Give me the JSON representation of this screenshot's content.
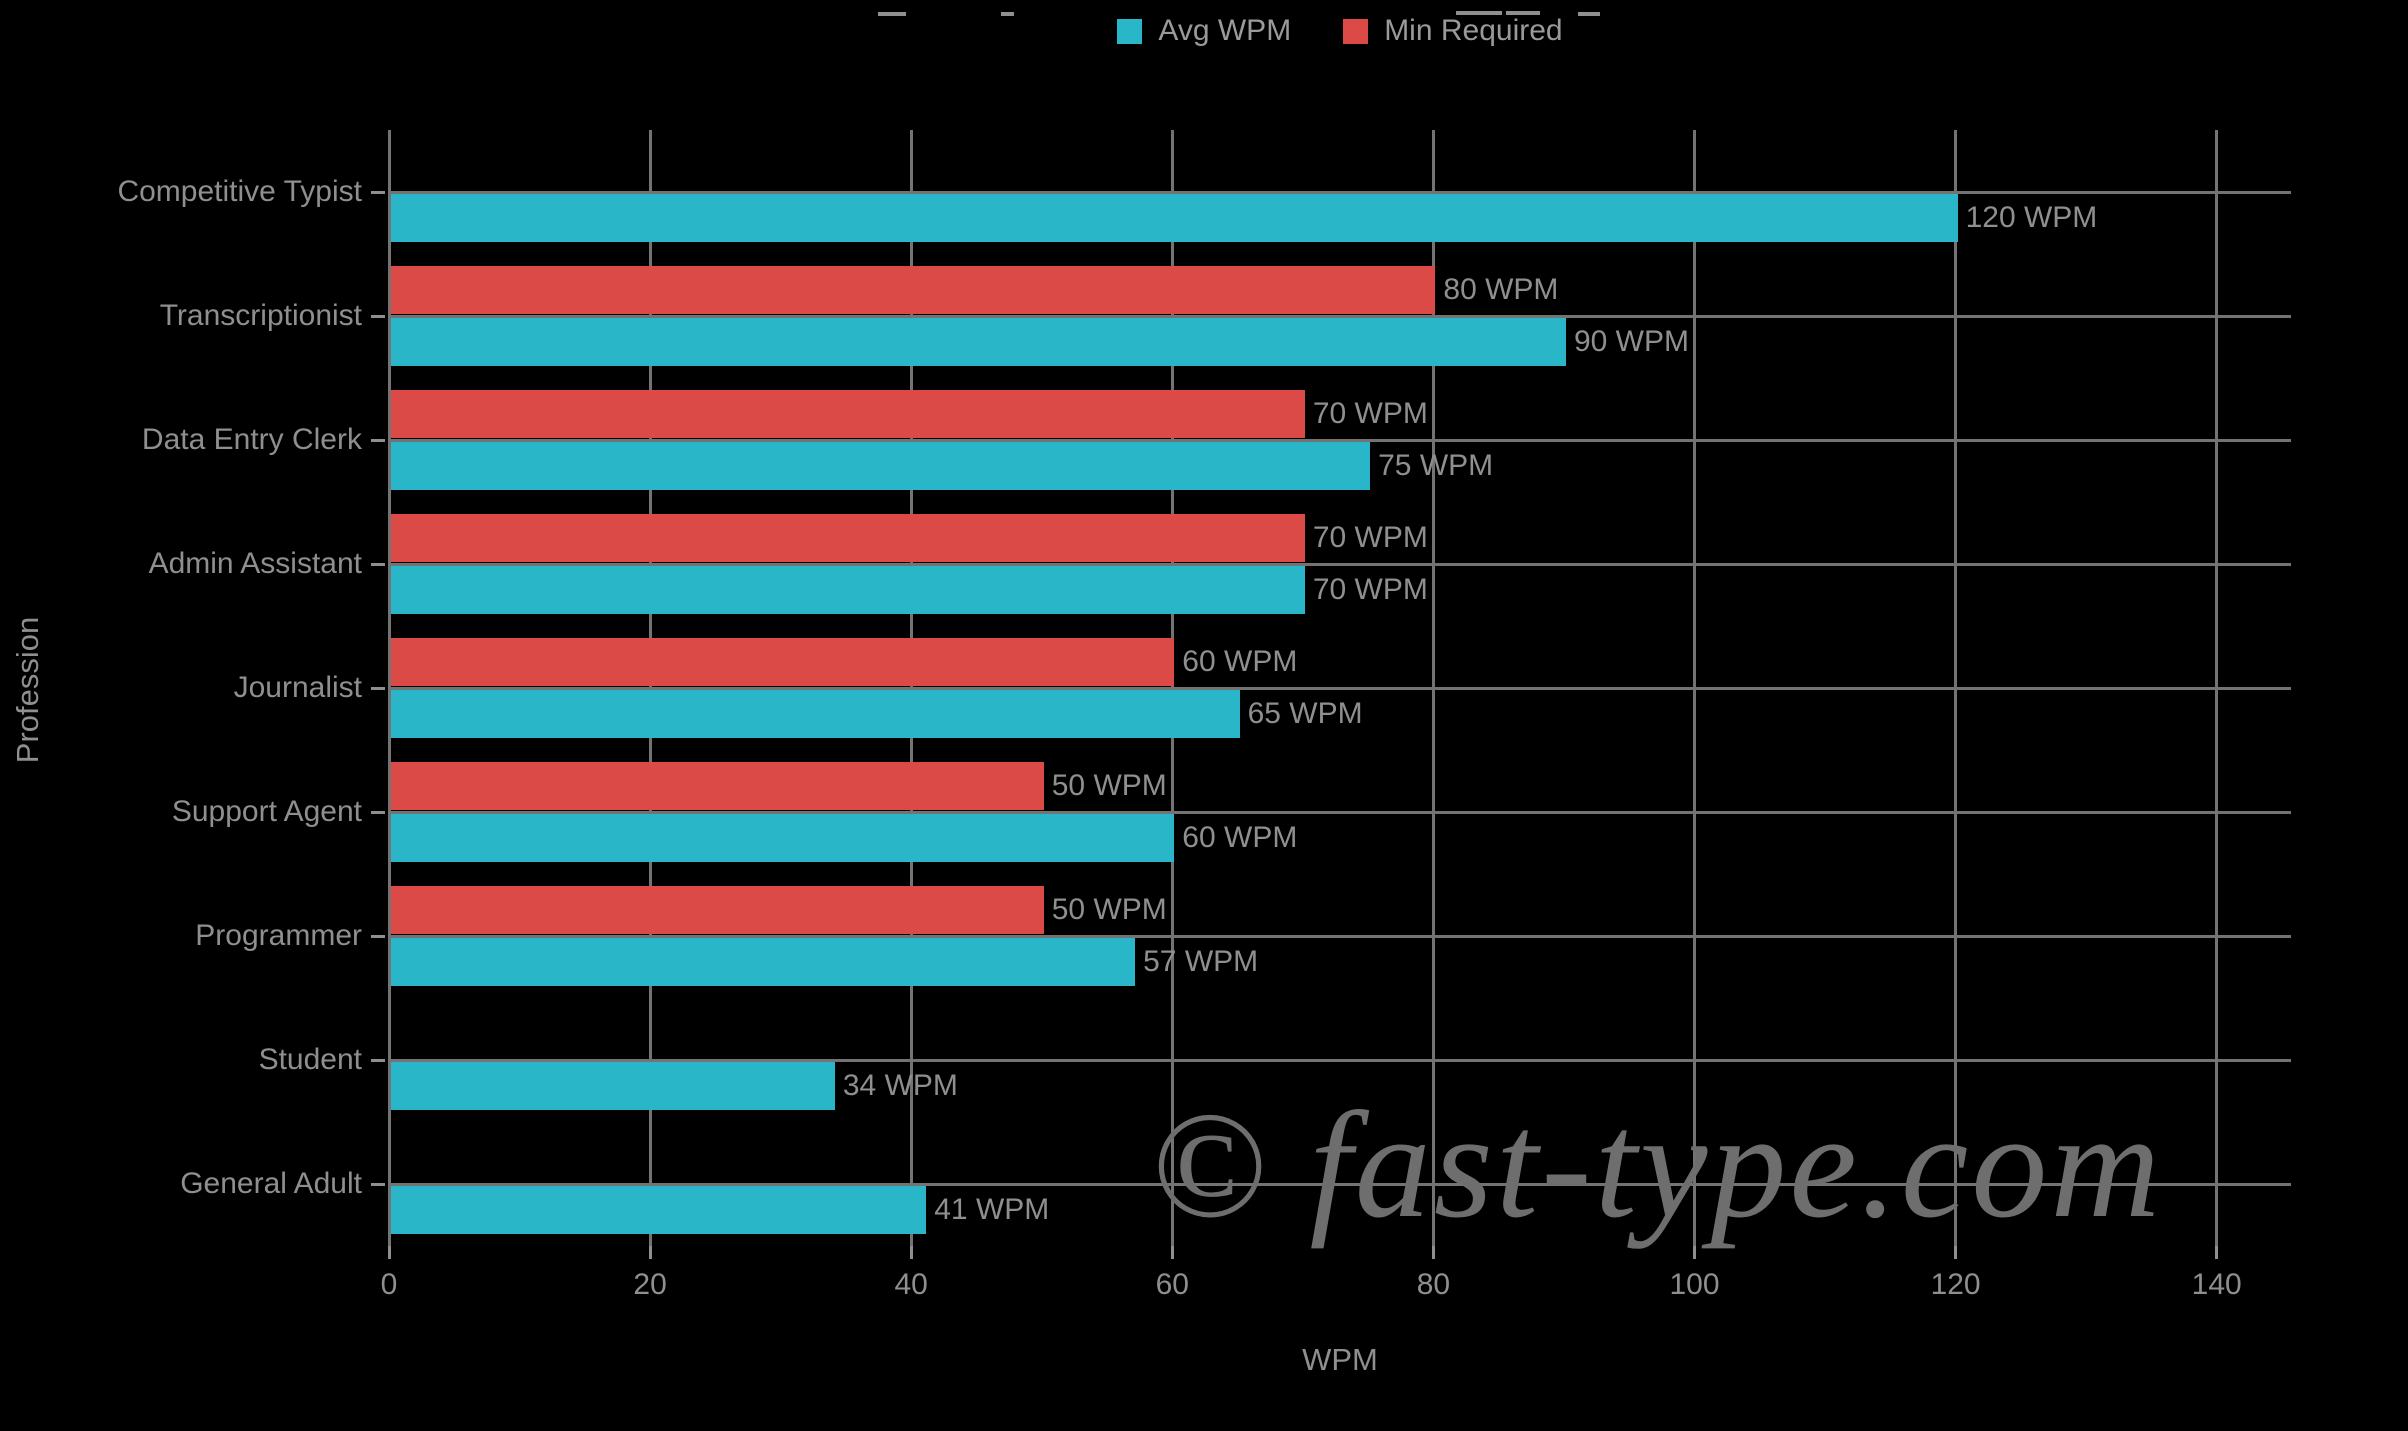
{
  "chart_data": {
    "type": "bar",
    "orientation": "horizontal",
    "categories": [
      "Competitive Typist",
      "Transcriptionist",
      "Data Entry Clerk",
      "Admin Assistant",
      "Journalist",
      "Support Agent",
      "Programmer",
      "Student",
      "General Adult"
    ],
    "series": [
      {
        "name": "Avg WPM",
        "color": "#29b6c9",
        "values": [
          120,
          90,
          75,
          70,
          65,
          60,
          57,
          34,
          41
        ]
      },
      {
        "name": "Min Required",
        "color": "#db4a47",
        "values": [
          null,
          80,
          70,
          70,
          60,
          50,
          50,
          null,
          null
        ]
      }
    ],
    "bar_label_suffix": " WPM",
    "xlabel": "WPM",
    "ylabel": "Profession",
    "xlim": [
      0,
      145.6
    ],
    "xticks": [
      0,
      20,
      40,
      60,
      80,
      100,
      120,
      140
    ],
    "grid": true,
    "legend_position": "top-center",
    "background_color": "#000000",
    "grid_color": "#737373",
    "text_color": "#8f8f8f",
    "watermark": "© fast-type.com",
    "watermark_color": "#6e6e6e"
  }
}
